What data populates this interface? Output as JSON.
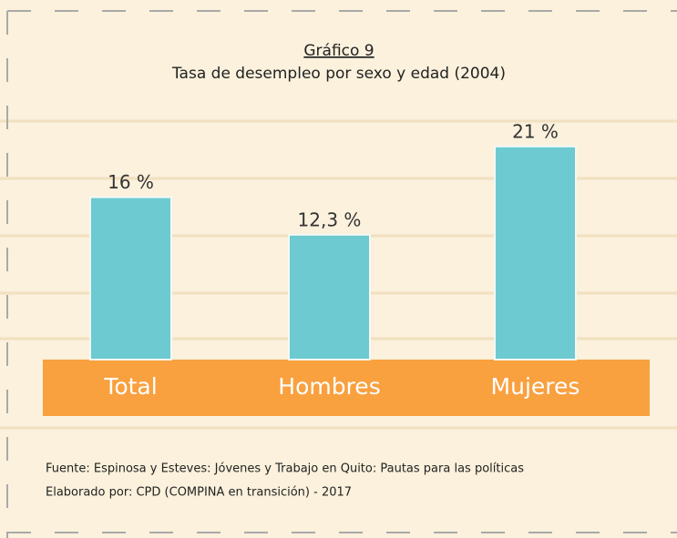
{
  "chart_data": {
    "type": "bar",
    "title": "Gráfico 9",
    "subtitle": "Tasa de desempleo por sexo y edad (2004)",
    "categories": [
      "Total",
      "Hombres",
      "Mujeres"
    ],
    "values": [
      16,
      12.3,
      21
    ],
    "value_labels": [
      "16 %",
      "12,3 %",
      "21 %"
    ],
    "color": "#6ccad0",
    "category_band_color": "#f9a03f",
    "notes": [
      "Fuente: Espinosa y Esteves: Jóvenes y Trabajo en Quito: Pautas para las políticas",
      "Elaborado por: CPD (COMPINA en transición) - 2017"
    ]
  }
}
